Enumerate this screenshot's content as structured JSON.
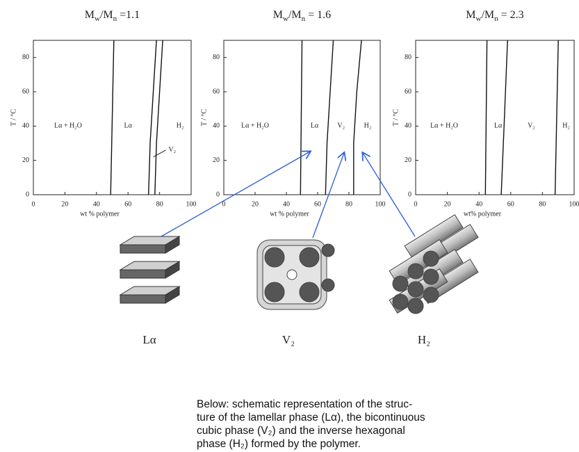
{
  "chart_data": [
    {
      "type": "line",
      "title_parts": [
        "M",
        "w",
        "/M",
        "n",
        " =1.1"
      ],
      "xlabel": "wt % polymer",
      "ylabel": "T / °C",
      "xlim": [
        0,
        100
      ],
      "ylim": [
        0,
        90
      ],
      "xticks": [
        0,
        20,
        40,
        60,
        80,
        100
      ],
      "yticks": [
        0,
        20,
        40,
        60,
        80
      ],
      "series": [
        {
          "color": "#111111",
          "x": [
            49,
            50,
            51
          ],
          "values": [
            0,
            45,
            90
          ]
        },
        {
          "color": "#111111",
          "x": [
            73,
            74,
            76,
            78
          ],
          "values": [
            0,
            30,
            60,
            90
          ]
        },
        {
          "color": "#111111",
          "x": [
            77,
            78,
            80,
            82
          ],
          "values": [
            0,
            30,
            60,
            90
          ]
        }
      ],
      "annotations": [
        "Lα + H₂O",
        "Lα",
        "H₂",
        "V₂"
      ]
    },
    {
      "type": "line",
      "title_parts": [
        "M",
        "w",
        "/M",
        "n",
        " = 1.6"
      ],
      "xlabel": "wt % polymer",
      "ylabel": "T / °C",
      "xlim": [
        0,
        100
      ],
      "ylim": [
        0,
        90
      ],
      "xticks": [
        0,
        20,
        40,
        60,
        80,
        100
      ],
      "yticks": [
        0,
        20,
        40,
        60,
        80
      ],
      "series": [
        {
          "color": "#111111",
          "x": [
            49,
            50
          ],
          "values": [
            0,
            90
          ]
        },
        {
          "color": "#111111",
          "x": [
            65,
            66,
            68,
            70
          ],
          "values": [
            0,
            30,
            60,
            90
          ]
        },
        {
          "color": "#111111",
          "x": [
            83,
            83,
            85,
            88
          ],
          "values": [
            0,
            30,
            60,
            90
          ]
        }
      ],
      "annotations": [
        "Lα + H₂O",
        "Lα",
        "V₂",
        "H₂"
      ]
    },
    {
      "type": "line",
      "title_parts": [
        "M",
        "w",
        "/M",
        "n",
        " = 2.3"
      ],
      "xlabel": "wt% polymer",
      "ylabel": "T / °C",
      "xlim": [
        0,
        100
      ],
      "ylim": [
        0,
        90
      ],
      "xticks": [
        0,
        20,
        40,
        60,
        80,
        100
      ],
      "yticks": [
        0,
        20,
        40,
        60,
        80
      ],
      "series": [
        {
          "color": "#111111",
          "x": [
            44,
            45
          ],
          "values": [
            0,
            90
          ]
        },
        {
          "color": "#111111",
          "x": [
            54,
            56,
            58
          ],
          "values": [
            0,
            45,
            90
          ]
        },
        {
          "color": "#111111",
          "x": [
            88,
            89,
            90
          ],
          "values": [
            0,
            45,
            90
          ]
        }
      ],
      "annotations": [
        "Lα + H₂O",
        "Lα",
        "V₂",
        "H₂"
      ]
    }
  ],
  "schematic_labels": [
    "Lα",
    "V₂",
    "H₂"
  ],
  "caption": [
    "Below: schematic representation of the struc-",
    "ture of the lamellar phase (Lα), the bicontinuous",
    "cubic phase (V₂) and the inverse hexagonal",
    "phase (H₂) formed by the polymer."
  ]
}
